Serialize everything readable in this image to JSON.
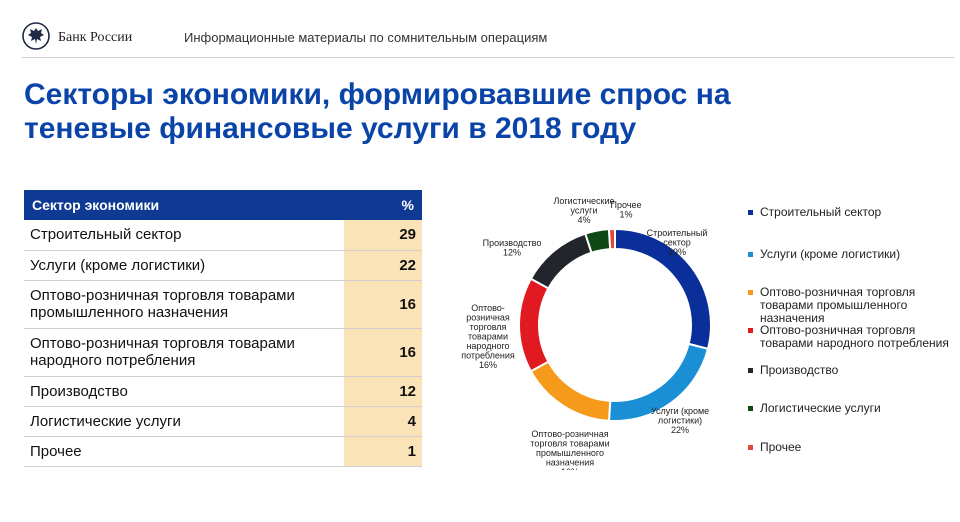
{
  "header": {
    "brand": "Банк России",
    "caption": "Информационные материалы по сомнительным операциям"
  },
  "title": "Секторы экономики, формировавшие спрос на теневые финансовые услуги в 2018 году",
  "table": {
    "headers": [
      "Сектор экономики",
      "%"
    ],
    "rows": [
      {
        "sector": "Строительный сектор",
        "value": "29"
      },
      {
        "sector": "Услуги (кроме логистики)",
        "value": "22"
      },
      {
        "sector": "Оптово-розничная торговля товарами промышленного назначения",
        "value": "16"
      },
      {
        "sector": "Оптово-розничная торговля товарами народного потребления",
        "value": "16"
      },
      {
        "sector": "Производство",
        "value": "12"
      },
      {
        "sector": "Логистические услуги",
        "value": "4"
      },
      {
        "sector": "Прочее",
        "value": "1"
      }
    ]
  },
  "chart_data": {
    "type": "pie",
    "variant": "donut",
    "categories": [
      "Строительный сектор",
      "Услуги (кроме логистики)",
      "Оптово-розничная торговля товарами промышленного назначения",
      "Оптово-розничная торговля товарами народного потребления",
      "Производство",
      "Логистические услуги",
      "Прочее"
    ],
    "values": [
      29,
      22,
      16,
      16,
      12,
      4,
      1
    ],
    "colors": [
      "#0a2f9a",
      "#1a8fd6",
      "#f59a1b",
      "#e11a22",
      "#22262c",
      "#0f4a16",
      "#e2473e"
    ],
    "slice_labels": [
      [
        "Строительный",
        "сектор",
        "29%"
      ],
      [
        "Услуги (кроме",
        "логистики)",
        "22%"
      ],
      [
        "Оптово-розничная",
        "торговля товарами",
        "промышленного",
        "назначения",
        "16%"
      ],
      [
        "Оптово-",
        "розничная",
        "торговля",
        "товарами",
        "народного",
        "потребления",
        "16%"
      ],
      [
        "Производство",
        "12%"
      ],
      [
        "Логистические",
        "услуги",
        "4%"
      ],
      [
        "Прочее",
        "1%"
      ]
    ],
    "legend_position": "right"
  },
  "legend": [
    [
      "Строительный сектор"
    ],
    [
      "Услуги (кроме логистики)"
    ],
    [
      "Оптово-розничная торговля",
      "товарами промышленного",
      "назначения"
    ],
    [
      "Оптово-розничная торговля",
      "товарами народного потребления"
    ],
    [
      "Производство"
    ],
    [
      "Логистические услуги"
    ],
    [
      "Прочее"
    ]
  ]
}
